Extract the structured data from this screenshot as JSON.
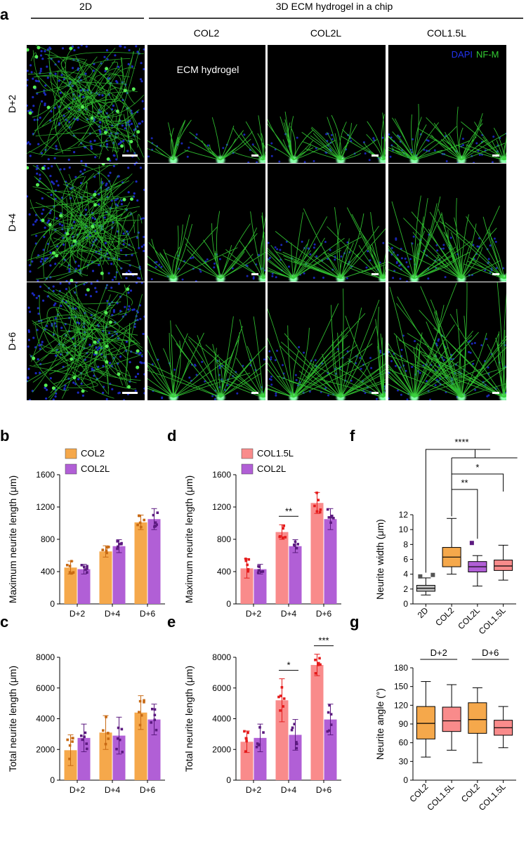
{
  "panel_a": {
    "letter": "a",
    "header_2d": "2D",
    "header_3d": "3D ECM hydrogel in a chip",
    "columns": [
      "COL2",
      "COL2L",
      "COL1.5L"
    ],
    "rows": [
      "D+2",
      "D+4",
      "D+6"
    ],
    "hydrogel_label": "ECM hydrogel",
    "legend_dapi": "DAPI",
    "legend_nfm": "NF-M",
    "colors": {
      "dapi": "#2233ee",
      "nfm": "#33cc33"
    }
  },
  "colors": {
    "col2": "#f5a84b",
    "col2_dot": "#c86a14",
    "col2l": "#b15fd6",
    "col2l_dot": "#5c1a80",
    "col15l": "#f98b8b",
    "col15l_dot": "#e51c1c",
    "gray": "#bdbdbd",
    "gray_dot": "#555555"
  },
  "chart_data": [
    {
      "id": "b",
      "letter": "b",
      "type": "bar",
      "categories": [
        "D+2",
        "D+4",
        "D+6"
      ],
      "series": [
        {
          "name": "COL2",
          "values": [
            450,
            650,
            1010
          ],
          "err": [
            80,
            70,
            90
          ]
        },
        {
          "name": "COL2L",
          "values": [
            430,
            715,
            1050
          ],
          "err": [
            60,
            80,
            130
          ]
        }
      ],
      "legend": [
        "COL2",
        "COL2L"
      ],
      "ylabel": "Maximum neurite length (μm)",
      "ylim": [
        0,
        1600
      ],
      "yticks": [
        0,
        400,
        800,
        1200,
        1600
      ],
      "significance": []
    },
    {
      "id": "c",
      "letter": "c",
      "type": "bar",
      "categories": [
        "D+2",
        "D+4",
        "D+6"
      ],
      "series": [
        {
          "name": "COL2",
          "values": [
            1950,
            3100,
            4400
          ],
          "err": [
            1000,
            1100,
            1100
          ]
        },
        {
          "name": "COL2L",
          "values": [
            2750,
            2900,
            3950
          ],
          "err": [
            900,
            1200,
            1000
          ]
        }
      ],
      "ylabel": "Total neurite length (μm)",
      "ylim": [
        0,
        8000
      ],
      "yticks": [
        0,
        2000,
        4000,
        6000,
        8000
      ],
      "significance": []
    },
    {
      "id": "d",
      "letter": "d",
      "type": "bar",
      "categories": [
        "D+2",
        "D+4",
        "D+6"
      ],
      "series": [
        {
          "name": "COL1.5L",
          "values": [
            440,
            890,
            1250
          ],
          "err": [
            120,
            90,
            130
          ]
        },
        {
          "name": "COL2L",
          "values": [
            430,
            715,
            1050
          ],
          "err": [
            60,
            80,
            130
          ]
        }
      ],
      "legend": [
        "COL1.5L",
        "COL2L"
      ],
      "ylabel": "Maximum neurite length (μm)",
      "ylim": [
        0,
        1600
      ],
      "yticks": [
        0,
        400,
        800,
        1200,
        1600
      ],
      "significance": [
        {
          "group": 1,
          "label": "**"
        }
      ]
    },
    {
      "id": "e",
      "letter": "e",
      "type": "bar",
      "categories": [
        "D+2",
        "D+4",
        "D+6"
      ],
      "series": [
        {
          "name": "COL1.5L",
          "values": [
            2500,
            5200,
            7500
          ],
          "err": [
            700,
            1400,
            700
          ]
        },
        {
          "name": "COL2L",
          "values": [
            2750,
            2950,
            3950
          ],
          "err": [
            900,
            1000,
            1000
          ]
        }
      ],
      "ylabel": "Total neurite length (μm)",
      "ylim": [
        0,
        8000
      ],
      "yticks": [
        0,
        2000,
        4000,
        6000,
        8000
      ],
      "significance": [
        {
          "group": 1,
          "label": "*"
        },
        {
          "group": 2,
          "label": "***"
        }
      ]
    },
    {
      "id": "f",
      "letter": "f",
      "type": "box",
      "categories": [
        "2D",
        "COL2",
        "COL2L",
        "COL1.5L"
      ],
      "boxes": [
        {
          "min": 1.2,
          "q1": 1.7,
          "median": 2.1,
          "q3": 2.5,
          "max": 3.5,
          "outliers": [
            3.7,
            3.9
          ]
        },
        {
          "min": 4.0,
          "q1": 5.0,
          "median": 6.3,
          "q3": 7.6,
          "max": 11.5,
          "outliers": []
        },
        {
          "min": 2.4,
          "q1": 4.3,
          "median": 5.0,
          "q3": 5.7,
          "max": 6.5,
          "outliers": [
            8.2
          ]
        },
        {
          "min": 3.2,
          "q1": 4.5,
          "median": 5.1,
          "q3": 5.9,
          "max": 7.9,
          "outliers": []
        }
      ],
      "ylabel": "Neurite width (μm)",
      "ylim": [
        0,
        12
      ],
      "yticks": [
        0,
        2,
        4,
        6,
        8,
        10,
        12
      ],
      "significance": [
        {
          "label": "****",
          "from": 0,
          "to": [
            1,
            2,
            3
          ]
        },
        {
          "label": "*",
          "from": 1,
          "to": 3
        },
        {
          "label": "**",
          "from": 1,
          "to": 2
        }
      ]
    },
    {
      "id": "g",
      "letter": "g",
      "type": "box",
      "categories": [
        "COL2",
        "COL1.5L",
        "COL2",
        "COL1.5L"
      ],
      "boxes": [
        {
          "min": 37,
          "q1": 66,
          "median": 91,
          "q3": 118,
          "max": 158,
          "outliers": []
        },
        {
          "min": 48,
          "q1": 78,
          "median": 95,
          "q3": 117,
          "max": 153,
          "outliers": []
        },
        {
          "min": 28,
          "q1": 75,
          "median": 97,
          "q3": 124,
          "max": 148,
          "outliers": []
        },
        {
          "min": 52,
          "q1": 72,
          "median": 84,
          "q3": 96,
          "max": 118,
          "outliers": []
        }
      ],
      "group_labels": [
        "D+2",
        "D+6"
      ],
      "ylabel": "Neurite angle (°)",
      "ylim": [
        0,
        180
      ],
      "yticks": [
        0,
        30,
        60,
        90,
        120,
        150,
        180
      ]
    }
  ]
}
